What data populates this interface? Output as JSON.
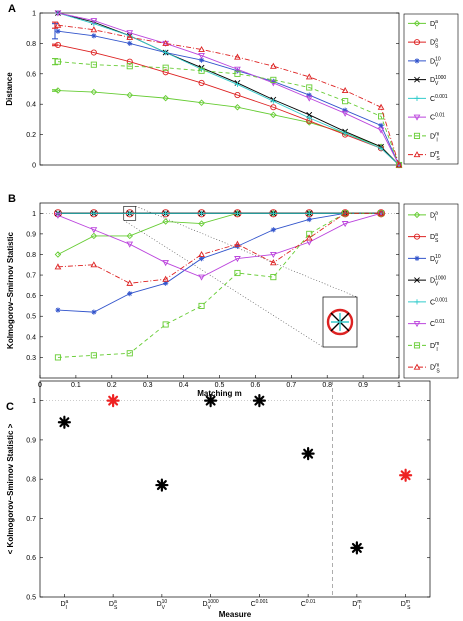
{
  "chart_data": [
    {
      "panel": "A",
      "type": "line",
      "ylabel": "Distance",
      "xlabel": "",
      "xlim": [
        0,
        1
      ],
      "ylim": [
        0,
        1
      ],
      "yticks": [
        "0",
        "0.2",
        "0.4",
        "0.6",
        "0.8",
        "1"
      ],
      "x": [
        0.05,
        0.15,
        0.25,
        0.35,
        0.45,
        0.55,
        0.65,
        0.75,
        0.85,
        0.95,
        1.0
      ],
      "series": [
        {
          "name": "D_I^a",
          "color": "#66cc33",
          "marker": "diamond",
          "dash": "solid",
          "values": [
            0.49,
            0.48,
            0.46,
            0.44,
            0.41,
            0.38,
            0.33,
            0.28,
            0.21,
            0.12,
            0.0
          ]
        },
        {
          "name": "D_S^a",
          "color": "#dd2222",
          "marker": "circle",
          "dash": "solid",
          "values": [
            0.79,
            0.74,
            0.68,
            0.61,
            0.54,
            0.46,
            0.38,
            0.29,
            0.2,
            0.11,
            0.0
          ]
        },
        {
          "name": "D_V^10",
          "color": "#3355cc",
          "marker": "star",
          "dash": "solid",
          "values": [
            0.88,
            0.85,
            0.8,
            0.74,
            0.69,
            0.62,
            0.55,
            0.46,
            0.36,
            0.26,
            0.0
          ]
        },
        {
          "name": "D_V^1000",
          "color": "#000000",
          "marker": "x",
          "dash": "solid",
          "values": [
            1.0,
            0.94,
            0.85,
            0.74,
            0.64,
            0.54,
            0.43,
            0.33,
            0.22,
            0.12,
            0.0
          ]
        },
        {
          "name": "C^0.001",
          "color": "#33cccc",
          "marker": "plus",
          "dash": "solid",
          "values": [
            1.0,
            0.93,
            0.85,
            0.74,
            0.63,
            0.53,
            0.42,
            0.31,
            0.21,
            0.11,
            0.0
          ]
        },
        {
          "name": "C^0.01",
          "color": "#bb44dd",
          "marker": "tri_down",
          "dash": "solid",
          "values": [
            1.0,
            0.95,
            0.87,
            0.8,
            0.72,
            0.63,
            0.54,
            0.44,
            0.34,
            0.23,
            0.0
          ]
        },
        {
          "name": "D_I^m",
          "color": "#66cc33",
          "marker": "square",
          "dash": "dashed",
          "values": [
            0.68,
            0.66,
            0.65,
            0.64,
            0.62,
            0.6,
            0.56,
            0.51,
            0.42,
            0.32,
            0.0
          ]
        },
        {
          "name": "D_S^m",
          "color": "#dd2222",
          "marker": "tri_up",
          "dash": "dashdot",
          "values": [
            0.92,
            0.89,
            0.84,
            0.8,
            0.76,
            0.71,
            0.65,
            0.58,
            0.49,
            0.38,
            0.0
          ]
        }
      ],
      "errorbars": [
        {
          "color": "#66cc33",
          "center": 0.49,
          "half_width": 0.005
        },
        {
          "color": "#dd2222",
          "center": 0.79,
          "half_width": 0.005
        },
        {
          "color": "#3355cc",
          "center": 0.88,
          "half_width": 0.05
        },
        {
          "color": "#66cc33",
          "center": 0.68,
          "half_width": 0.02
        },
        {
          "color": "#dd2222",
          "center": 0.92,
          "half_width": 0.02
        }
      ],
      "legend_placement": "right"
    },
    {
      "panel": "B",
      "type": "line",
      "ylabel": "Kolmogorov–Smirnov Statistic",
      "xlabel": "Matching m",
      "xlim": [
        0,
        1
      ],
      "ylim": [
        0.2,
        1.05
      ],
      "xticks": [
        "0",
        "0.1",
        "0.2",
        "0.3",
        "0.4",
        "0.5",
        "0.6",
        "0.7",
        "0.8",
        "0.9",
        "1"
      ],
      "yticks": [
        "0.3",
        "0.4",
        "0.5",
        "0.6",
        "0.7",
        "0.8",
        "0.9",
        "1"
      ],
      "x": [
        0.05,
        0.15,
        0.25,
        0.35,
        0.45,
        0.55,
        0.65,
        0.75,
        0.85,
        0.95
      ],
      "series": [
        {
          "name": "D_I^a",
          "color": "#66cc33",
          "marker": "diamond",
          "dash": "solid",
          "values": [
            0.8,
            0.89,
            0.89,
            0.96,
            0.95,
            1.0,
            1.0,
            1.0,
            1.0,
            1.0
          ]
        },
        {
          "name": "D_S^a",
          "color": "#dd2222",
          "marker": "circle",
          "dash": "solid",
          "values": [
            1.0,
            1.0,
            1.0,
            1.0,
            1.0,
            1.0,
            1.0,
            1.0,
            1.0,
            1.0
          ]
        },
        {
          "name": "D_V^10",
          "color": "#3355cc",
          "marker": "star",
          "dash": "solid",
          "values": [
            0.53,
            0.52,
            0.61,
            0.66,
            0.78,
            0.84,
            0.92,
            0.97,
            1.0,
            1.0
          ]
        },
        {
          "name": "D_V^1000",
          "color": "#000000",
          "marker": "x",
          "dash": "solid",
          "values": [
            1.0,
            1.0,
            1.0,
            1.0,
            1.0,
            1.0,
            1.0,
            1.0,
            1.0,
            1.0
          ]
        },
        {
          "name": "C^0.001",
          "color": "#33cccc",
          "marker": "plus",
          "dash": "solid",
          "values": [
            1.0,
            1.0,
            1.0,
            1.0,
            1.0,
            1.0,
            1.0,
            1.0,
            1.0,
            1.0
          ]
        },
        {
          "name": "C^0.01",
          "color": "#bb44dd",
          "marker": "tri_down",
          "dash": "solid",
          "values": [
            0.99,
            0.92,
            0.85,
            0.76,
            0.69,
            0.78,
            0.8,
            0.86,
            0.95,
            1.0
          ]
        },
        {
          "name": "D_I^m",
          "color": "#66cc33",
          "marker": "square",
          "dash": "dashed",
          "values": [
            0.3,
            0.31,
            0.32,
            0.46,
            0.55,
            0.71,
            0.69,
            0.9,
            1.0,
            1.0
          ]
        },
        {
          "name": "D_S^m",
          "color": "#dd2222",
          "marker": "tri_up",
          "dash": "dashdot",
          "values": [
            0.74,
            0.75,
            0.66,
            0.68,
            0.8,
            0.85,
            0.76,
            0.88,
            1.0,
            1.0
          ]
        }
      ],
      "inset_focus_x": 0.25,
      "legend_placement": "right"
    },
    {
      "panel": "C",
      "type": "scatter",
      "ylabel": "< Kolmogorov–Smirnov Statistic >",
      "xlabel": "Measure",
      "ylim": [
        0.5,
        1.05
      ],
      "yticks": [
        "0.5",
        "0.6",
        "0.7",
        "0.8",
        "0.9",
        "1"
      ],
      "categories": [
        "D_I^a",
        "D_S^a",
        "D_V^10",
        "D_V^1000",
        "C^0.001",
        "C^0.01",
        "D_I^m",
        "D_S^m"
      ],
      "values": [
        0.945,
        1.0,
        0.785,
        1.0,
        1.0,
        0.865,
        0.625,
        0.81
      ],
      "colors": [
        "#000000",
        "#ee2222",
        "#000000",
        "#000000",
        "#000000",
        "#000000",
        "#000000",
        "#ee2222"
      ],
      "reference_line_y": 1.0,
      "divider_between": [
        5,
        6
      ]
    }
  ]
}
